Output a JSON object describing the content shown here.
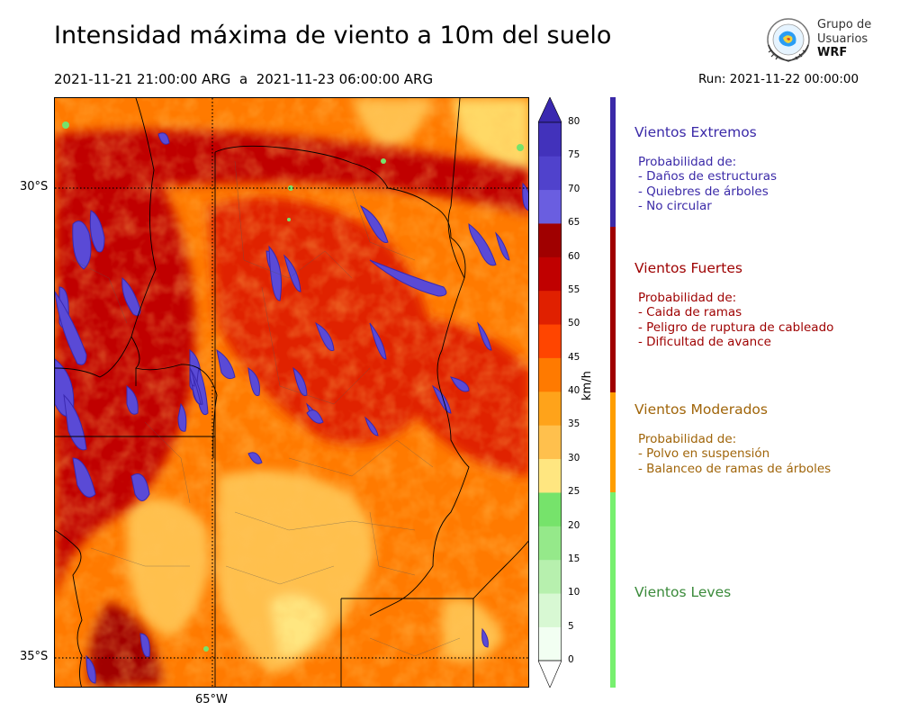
{
  "header": {
    "title": "Intensidad máxima de viento a 10m del suelo",
    "period_start": "2021-11-21 21:00:00 ARG",
    "period_sep": "a",
    "period_end": "2021-11-23 06:00:00 ARG",
    "run": "Run: 2021-11-22 00:00:00"
  },
  "logo": {
    "line1": "Grupo de",
    "line2": "Usuarios",
    "line3": "WRF",
    "icon": "globe-logo-icon"
  },
  "map": {
    "lat_labels": [
      "30°S",
      "35°S"
    ],
    "lon_labels": [
      "65°W"
    ],
    "background_level": 45
  },
  "colorbar": {
    "unit": "km/h",
    "ticks": [
      0,
      5,
      10,
      15,
      20,
      25,
      30,
      35,
      40,
      45,
      50,
      55,
      60,
      65,
      70,
      75,
      80
    ],
    "colors": [
      "#f2fff2",
      "#d8f8d3",
      "#b7f0ae",
      "#95e98a",
      "#76e36b",
      "#ffe680",
      "#ffc04d",
      "#ffa31a",
      "#ff7a00",
      "#ff4500",
      "#e02000",
      "#c00000",
      "#a00000",
      "#6a5ee0",
      "#5042cc",
      "#4232bb"
    ],
    "under_color": "#ffffff",
    "over_color": "#3a28b0"
  },
  "categories": [
    {
      "name": "Vientos Extremos",
      "color": "#3b2aa8",
      "bar_color": "#3b2aa8",
      "prob_title": "Probabilidad de:",
      "items": [
        "- Daños de estructuras",
        "- Quiebres de árboles",
        "- No circular"
      ]
    },
    {
      "name": "Vientos Fuertes",
      "color": "#9e0000",
      "bar_color": "#a00000",
      "prob_title": "Probabilidad de:",
      "items": [
        "- Caida de ramas",
        "- Peligro de ruptura de cableado",
        "- Dificultad de avance"
      ]
    },
    {
      "name": "Vientos Moderados",
      "color": "#a0650a",
      "bar_color": "#ff9e00",
      "prob_title": "Probabilidad de:",
      "items": [
        "- Polvo en suspensión",
        "- Balanceo de ramas de árboles"
      ]
    },
    {
      "name": "Vientos Leves",
      "color": "#3a8a3a",
      "bar_color": "#77f06f",
      "prob_title": "",
      "items": []
    }
  ]
}
